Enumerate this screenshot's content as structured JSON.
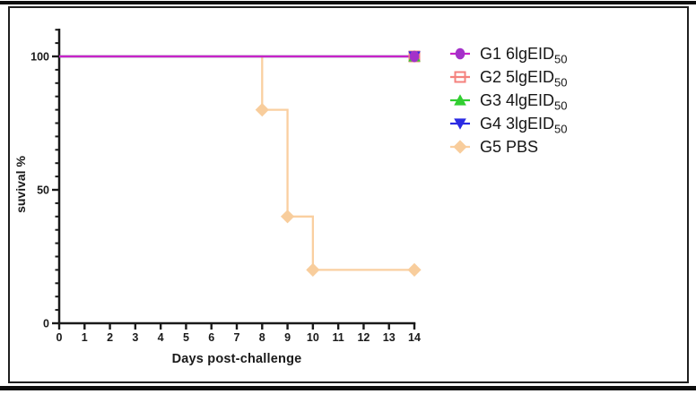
{
  "chart_data": {
    "type": "line",
    "subtype": "kaplan-meier-survival-step",
    "title": "",
    "xlabel": "Days post-challenge",
    "ylabel": "suvival %",
    "xlim": [
      0,
      14
    ],
    "ylim": [
      0,
      110
    ],
    "xticks": [
      0,
      1,
      2,
      3,
      4,
      5,
      6,
      7,
      8,
      9,
      10,
      11,
      12,
      13,
      14
    ],
    "yticks_major": [
      0,
      50,
      100
    ],
    "ytick_minor_step": 5,
    "grid": false,
    "legend_position": "right",
    "axis_color": "#1a1a1a",
    "series": [
      {
        "name": "G1 6lgEID50",
        "label_main": "G1 6lgEID",
        "label_sub": "50",
        "marker": "circle",
        "marker_color": "#A431C9",
        "line_color": "#C922C9",
        "points": [
          [
            0,
            100
          ],
          [
            14,
            100
          ]
        ],
        "marker_points": [
          [
            14,
            100
          ]
        ]
      },
      {
        "name": "G2 5lgEID50",
        "label_main": "G2 5lgEID",
        "label_sub": "50",
        "marker": "open-square",
        "marker_color": "#F4827E",
        "line_color": "#F4827E",
        "points": [
          [
            0,
            100
          ],
          [
            14,
            100
          ]
        ],
        "marker_points": [
          [
            14,
            100
          ]
        ]
      },
      {
        "name": "G3 4lgEID50",
        "label_main": "G3 4lgEID",
        "label_sub": "50",
        "marker": "triangle-up",
        "marker_color": "#31CE31",
        "line_color": "#31CE31",
        "points": [
          [
            0,
            100
          ],
          [
            14,
            100
          ]
        ],
        "marker_points": [
          [
            14,
            100
          ]
        ]
      },
      {
        "name": "G4 3lgEID50",
        "label_main": "G4 3lgEID",
        "label_sub": "50",
        "marker": "triangle-down",
        "marker_color": "#2B2BE3",
        "line_color": "#2B2BE3",
        "points": [
          [
            0,
            100
          ],
          [
            14,
            100
          ]
        ],
        "marker_points": [
          [
            14,
            100
          ]
        ]
      },
      {
        "name": "G5 PBS",
        "label_main": "G5 PBS",
        "label_sub": "",
        "marker": "diamond",
        "marker_color": "#F8CD9C",
        "line_color": "#FACFA0",
        "points": [
          [
            0,
            100
          ],
          [
            8,
            100
          ],
          [
            8,
            80
          ],
          [
            9,
            80
          ],
          [
            9,
            40
          ],
          [
            10,
            40
          ],
          [
            10,
            20
          ],
          [
            14,
            20
          ]
        ],
        "marker_points": [
          [
            8,
            80
          ],
          [
            9,
            40
          ],
          [
            10,
            20
          ],
          [
            14,
            20
          ]
        ]
      }
    ]
  }
}
